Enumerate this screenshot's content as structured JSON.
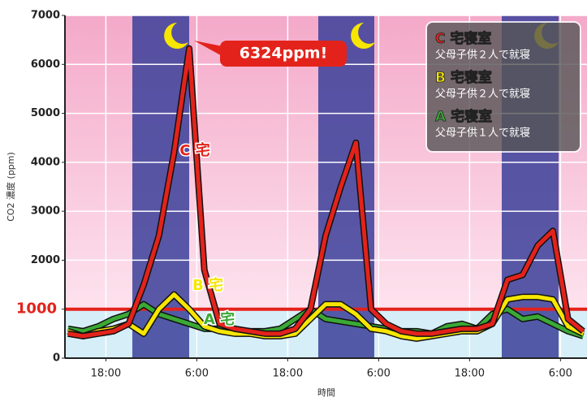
{
  "chart_data": {
    "type": "line",
    "y_label": "CO2 濃度 (ppm)",
    "x_label": "時間",
    "x": [
      13,
      15,
      17,
      19,
      21,
      23,
      25,
      27,
      29,
      31,
      33,
      35,
      37,
      39,
      41,
      43,
      45,
      47,
      49,
      51,
      53,
      55,
      57,
      59,
      61,
      63,
      65,
      67,
      69,
      71,
      73,
      75,
      77,
      79,
      81
    ],
    "xlim": [
      12.6,
      81.5
    ],
    "xticks": [
      {
        "value": 18,
        "label": "18:00"
      },
      {
        "value": 30,
        "label": "6:00"
      },
      {
        "value": 42,
        "label": "18:00"
      },
      {
        "value": 54,
        "label": "6:00"
      },
      {
        "value": 66,
        "label": "18:00"
      },
      {
        "value": 78,
        "label": "6:00"
      }
    ],
    "ylim": [
      0,
      7000
    ],
    "yticks": [
      0,
      1000,
      2000,
      3000,
      4000,
      5000,
      6000,
      7000
    ],
    "grid": true,
    "reference_line": {
      "value": 1000,
      "color": "#e3231b"
    },
    "series": [
      {
        "name": "C 宅寝室",
        "description": "父母子供２人で就寝",
        "color": "#e3231b",
        "values": [
          500,
          450,
          500,
          550,
          700,
          1500,
          2500,
          4200,
          6324,
          1800,
          700,
          600,
          550,
          500,
          500,
          600,
          1000,
          2500,
          3500,
          4400,
          1000,
          700,
          550,
          500,
          500,
          550,
          600,
          600,
          700,
          1600,
          1700,
          2300,
          2600,
          800,
          550
        ]
      },
      {
        "name": "B 宅寝室",
        "description": "父母子供２人で就寝",
        "color": "#f7e600",
        "values": [
          550,
          450,
          550,
          600,
          700,
          500,
          1000,
          1300,
          1000,
          650,
          550,
          500,
          500,
          450,
          450,
          500,
          800,
          1100,
          1100,
          900,
          600,
          550,
          450,
          400,
          450,
          500,
          550,
          550,
          700,
          1200,
          1250,
          1250,
          1200,
          650,
          500
        ]
      },
      {
        "name": "A 宅寝室",
        "description": "父母子供１人で就寝",
        "color": "#3aa935",
        "values": [
          600,
          550,
          650,
          800,
          900,
          1100,
          900,
          800,
          700,
          600,
          600,
          580,
          550,
          550,
          600,
          800,
          1000,
          800,
          750,
          700,
          650,
          600,
          550,
          550,
          500,
          650,
          700,
          600,
          900,
          1000,
          800,
          850,
          700,
          550,
          450
        ]
      }
    ],
    "annotations": [
      {
        "text": "6324ppm!",
        "color": "#e3231b"
      },
      {
        "text": "C 宅",
        "color": "#e3231b"
      },
      {
        "text": "B 宅",
        "color": "#f7e600"
      },
      {
        "text": "A 宅",
        "color": "#3aa935"
      }
    ]
  }
}
